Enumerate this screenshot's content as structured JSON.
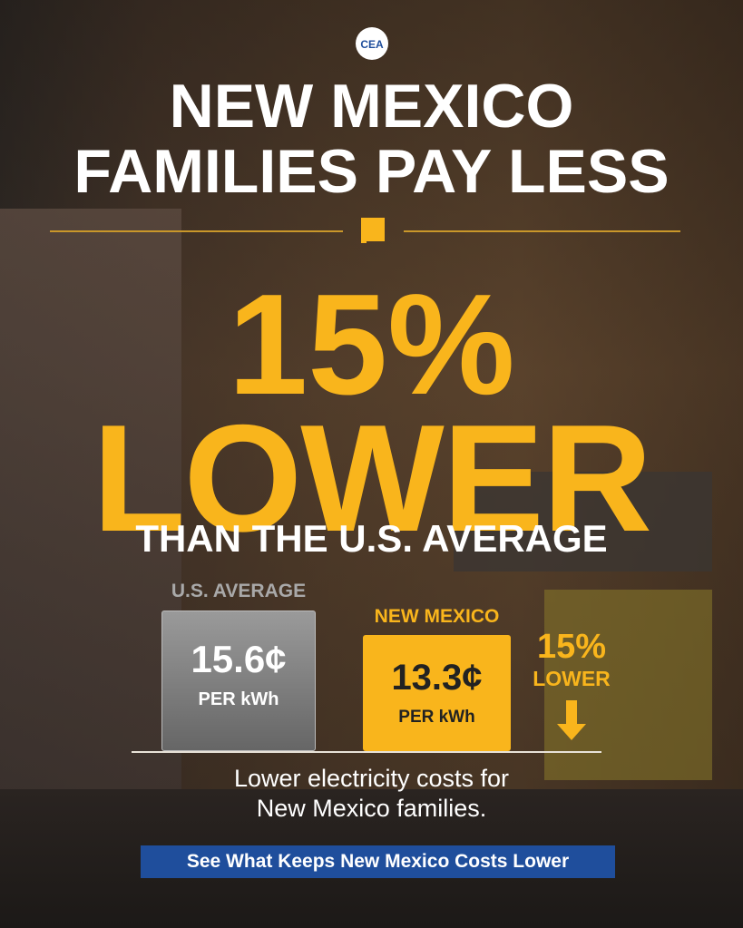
{
  "logo": "CEA",
  "headline": [
    "NEW MEXICO",
    "FAMILIES PAY LESS"
  ],
  "stat": {
    "percent": "15%",
    "word": "LOWER",
    "subtitle": "THAN THE U.S. AVERAGE"
  },
  "comparison": {
    "us": {
      "label": "U.S. AVERAGE",
      "value": "15.6¢",
      "unit": "PER kWh"
    },
    "nm": {
      "label": "NEW MEXICO",
      "value": "13.3¢",
      "unit": "PER kWh"
    },
    "callout": {
      "percent": "15%",
      "word": "LOWER"
    }
  },
  "footer": [
    "Lower electricity costs for",
    "New Mexico families."
  ],
  "button": "See What Keeps New Mexico Costs Lower"
}
